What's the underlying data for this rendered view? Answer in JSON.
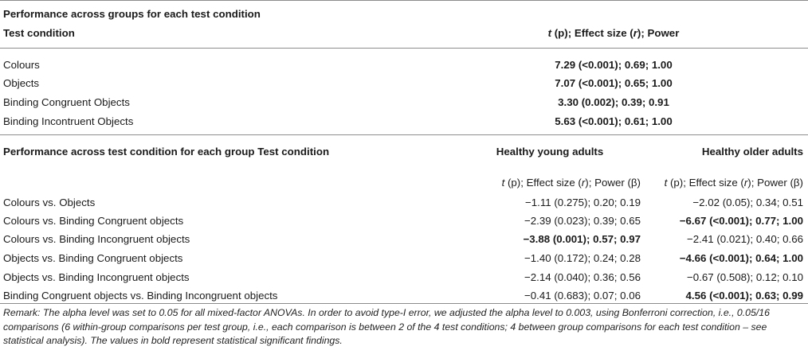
{
  "section1": {
    "title": "Performance across groups for each test condition",
    "col1_header": "Test condition",
    "col2_header_t": "t",
    "col2_header_rest_a": " (p); Effect size (",
    "col2_header_r": "r",
    "col2_header_rest_b": "); Power",
    "rows": [
      {
        "condition": "Colours",
        "value": "7.29 (<0.001); 0.69; 1.00",
        "bold": true
      },
      {
        "condition": "Objects",
        "value": "7.07 (<0.001); 0.65; 1.00",
        "bold": true
      },
      {
        "condition": "Binding Congruent Objects",
        "value": "3.30 (0.002); 0.39; 0.91",
        "bold": true
      },
      {
        "condition": "Binding Incontruent Objects",
        "value": "5.63 (<0.001); 0.61; 1.00",
        "bold": true
      }
    ]
  },
  "section2": {
    "title": "Performance across test condition for each group Test condition",
    "group1": "Healthy young adults",
    "group2": "Healthy older adults",
    "sub_t": "t",
    "sub_a": " (p); Effect size (",
    "sub_r": "r",
    "sub_b": "); Power (β)",
    "rows": [
      {
        "condition": "Colours vs. Objects",
        "young": "−1.11 (0.275); 0.20; 0.19",
        "young_bold": false,
        "older": "−2.02 (0.05); 0.34; 0.51",
        "older_bold": false
      },
      {
        "condition": "Colours vs. Binding Congruent objects",
        "young": "−2.39 (0.023); 0.39; 0.65",
        "young_bold": false,
        "older": "−6.67 (<0.001); 0.77; 1.00",
        "older_bold": true
      },
      {
        "condition": "Colours vs. Binding Incongruent objects",
        "young": "−3.88 (0.001); 0.57; 0.97",
        "young_bold": true,
        "older": "−2.41 (0.021); 0.40; 0.66",
        "older_bold": false
      },
      {
        "condition": "Objects vs. Binding Congruent objects",
        "young": "−1.40 (0.172); 0.24; 0.28",
        "young_bold": false,
        "older": "−4.66 (<0.001); 0.64; 1.00",
        "older_bold": true
      },
      {
        "condition": "Objects vs. Binding Incongruent objects",
        "young": "−2.14 (0.040); 0.36; 0.56",
        "young_bold": false,
        "older": "−0.67 (0.508); 0.12; 0.10",
        "older_bold": false
      },
      {
        "condition": "Binding Congruent objects vs. Binding Incongruent objects",
        "young": "−0.41 (0.683); 0.07; 0.06",
        "young_bold": false,
        "older": "4.56 (<0.001); 0.63; 0.99",
        "older_bold": true
      }
    ]
  },
  "remark": "Remark: The alpha level was set to 0.05 for all mixed-factor ANOVAs. In order to avoid type-I error, we adjusted the alpha level to 0.003, using Bonferroni correction, i.e., 0.05/16 comparisons (6 within-group comparisons per test group, i.e., each comparison is between 2 of the 4 test conditions; 4 between group comparisons for each test condition – see statistical analysis). The values in bold represent statistical significant findings."
}
